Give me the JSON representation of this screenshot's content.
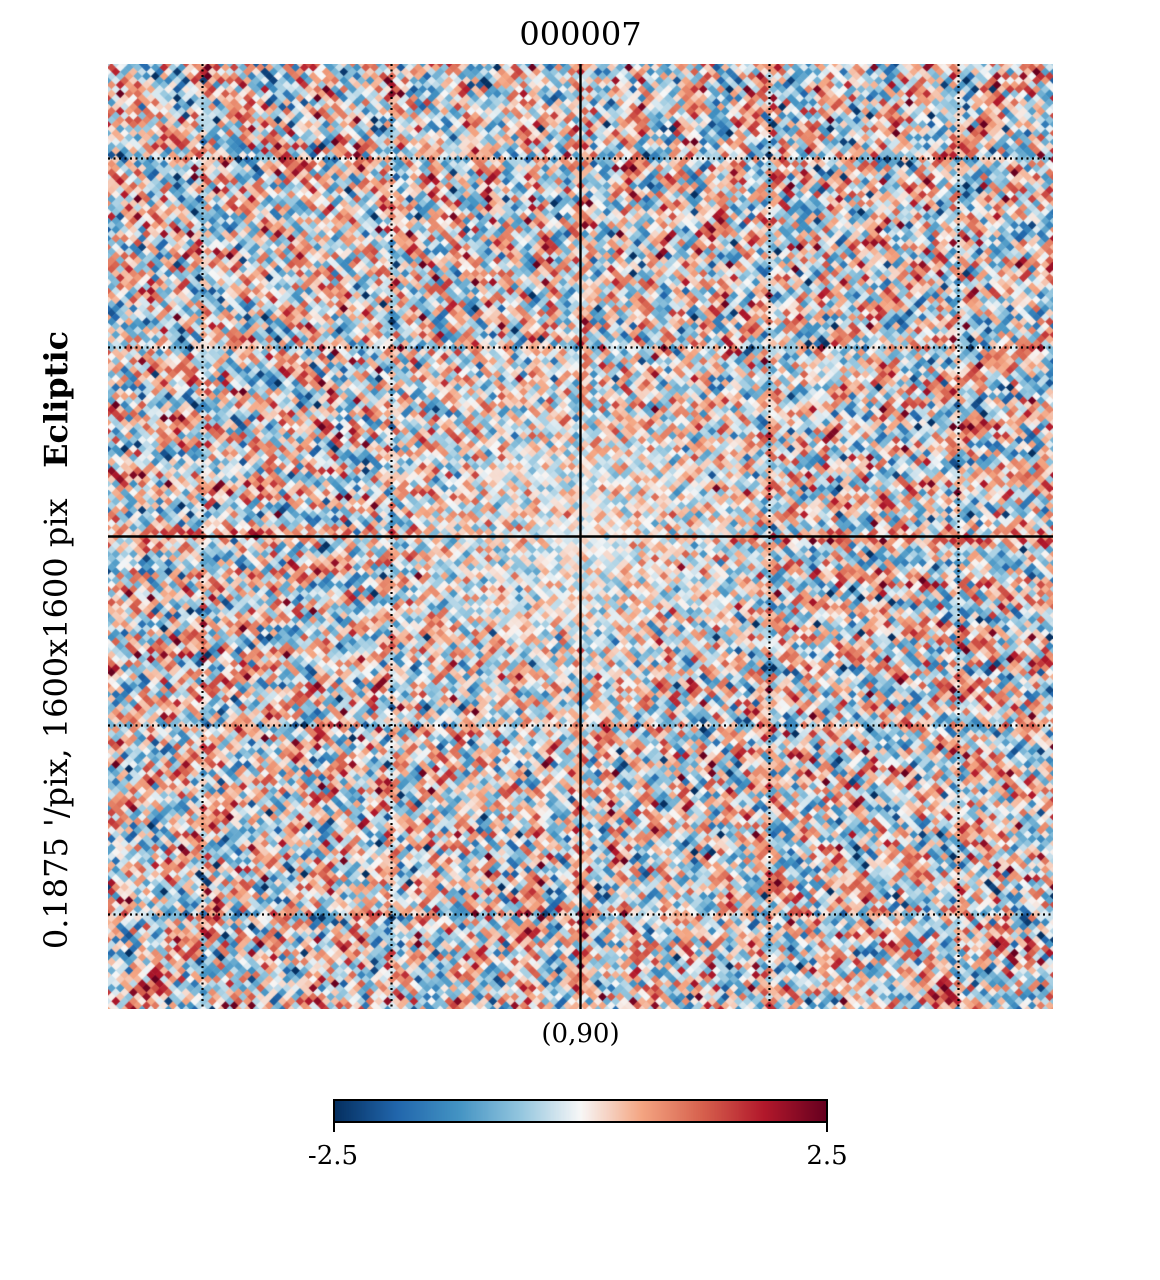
{
  "chart_data": {
    "type": "heatmap",
    "title": "000007",
    "ylabel": {
      "bold_part": "Ecliptic",
      "regular_part": "0.1875 '/pix,   1600x1600 pix"
    },
    "center_label": "(0,90)",
    "colormap": "RdBu_r",
    "colors": {
      "low": "#053061",
      "mid": "#f7f7f7",
      "high": "#67001f"
    },
    "colorbar": {
      "min": -2.5,
      "max": 2.5,
      "min_label": "-2.5",
      "max_label": "2.5"
    },
    "graticule": {
      "grid": true,
      "style": "dotted",
      "center_axes": "solid"
    },
    "values_note_hidden": true
  }
}
